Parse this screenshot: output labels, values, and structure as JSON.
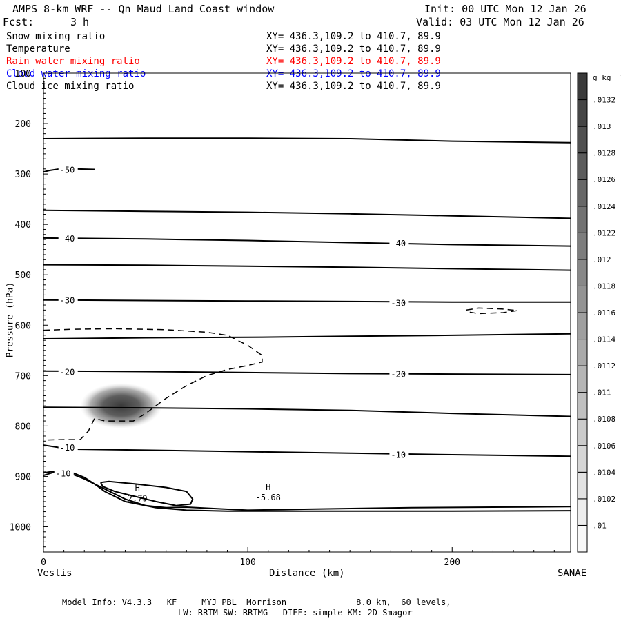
{
  "header": {
    "title": "AMPS 8-km WRF -- Qn Maud Land Coast window",
    "init": "Init: 00 UTC Mon 12 Jan 26",
    "fcst_label": "Fcst:",
    "fcst_value": "3 h",
    "valid": "Valid: 03 UTC Mon 12 Jan 26"
  },
  "variables": [
    {
      "name": "Snow mixing ratio",
      "xy": "XY= 436.3,109.2 to 410.7, 89.9",
      "color": "#000000"
    },
    {
      "name": "Temperature",
      "xy": "XY= 436.3,109.2 to 410.7, 89.9",
      "color": "#000000"
    },
    {
      "name": "Rain water mixing ratio",
      "xy": "XY= 436.3,109.2 to 410.7, 89.9",
      "color": "#ff0000"
    },
    {
      "name": "Cloud water mixing ratio",
      "xy": "XY= 436.3,109.2 to 410.7, 89.9",
      "color": "#0000ff"
    },
    {
      "name": "Cloud ice mixing ratio",
      "xy": "XY= 436.3,109.2 to 410.7, 89.9",
      "color": "#000000"
    }
  ],
  "footer": {
    "line1": "Model Info: V4.3.3   KF     MYJ PBL  Morrison              8.0 km,  60 levels,",
    "line2": "LW: RRTM SW: RRTMG   DIFF: simple KM: 2D Smagor"
  },
  "chart_data": {
    "type": "contour",
    "xlabel": "Distance (km)",
    "ylabel": "Pressure (hPa)",
    "xlim": [
      0,
      258
    ],
    "ylim": [
      1050,
      100
    ],
    "x_ticks": [
      0,
      100,
      200
    ],
    "y_ticks": [
      100,
      200,
      300,
      400,
      500,
      600,
      700,
      800,
      900,
      1000
    ],
    "x_endpoints": {
      "left": "Veslis",
      "right": "SANAE"
    },
    "colorbar": {
      "unit_label": "g kg",
      "unit_exponent": "-1",
      "levels": [
        ".01",
        ".0102",
        ".0104",
        ".0106",
        ".0108",
        ".011",
        ".0112",
        ".0114",
        ".0116",
        ".0118",
        ".012",
        ".0122",
        ".0124",
        ".0126",
        ".0128",
        ".013",
        ".0132"
      ]
    },
    "temperature_contours": [
      {
        "label": "-50",
        "label_positions": [
          [
            8,
            291
          ]
        ],
        "points": [
          [
            0,
            296
          ],
          [
            3,
            293
          ],
          [
            8,
            290
          ],
          [
            15,
            290
          ],
          [
            25,
            291
          ]
        ]
      },
      {
        "points": [
          [
            0,
            230
          ],
          [
            50,
            229
          ],
          [
            100,
            229
          ],
          [
            150,
            230
          ],
          [
            200,
            235
          ],
          [
            258,
            238
          ]
        ]
      },
      {
        "points": [
          [
            0,
            372
          ],
          [
            50,
            374
          ],
          [
            100,
            376
          ],
          [
            150,
            379
          ],
          [
            200,
            383
          ],
          [
            258,
            388
          ]
        ]
      },
      {
        "label": "-40",
        "label_positions": [
          [
            8,
            427
          ],
          [
            170,
            437
          ]
        ],
        "points": [
          [
            0,
            427
          ],
          [
            50,
            429
          ],
          [
            100,
            432
          ],
          [
            150,
            436
          ],
          [
            200,
            440
          ],
          [
            258,
            443
          ]
        ]
      },
      {
        "points": [
          [
            0,
            480
          ],
          [
            50,
            481
          ],
          [
            100,
            483
          ],
          [
            150,
            485
          ],
          [
            200,
            488
          ],
          [
            258,
            491
          ]
        ]
      },
      {
        "label": "-30",
        "label_positions": [
          [
            8,
            550
          ],
          [
            170,
            555
          ]
        ],
        "points": [
          [
            0,
            550
          ],
          [
            50,
            551
          ],
          [
            100,
            552
          ],
          [
            150,
            553
          ],
          [
            200,
            554
          ],
          [
            258,
            554
          ]
        ]
      },
      {
        "points": [
          [
            0,
            627
          ],
          [
            50,
            625
          ],
          [
            100,
            624
          ],
          [
            150,
            622
          ],
          [
            200,
            620
          ],
          [
            258,
            617
          ]
        ]
      },
      {
        "label": "-20",
        "label_positions": [
          [
            8,
            692
          ],
          [
            170,
            696
          ]
        ],
        "points": [
          [
            0,
            691
          ],
          [
            50,
            692
          ],
          [
            100,
            694
          ],
          [
            150,
            696
          ],
          [
            200,
            697
          ],
          [
            258,
            698
          ]
        ]
      },
      {
        "points": [
          [
            0,
            763
          ],
          [
            50,
            764
          ],
          [
            100,
            766
          ],
          [
            150,
            769
          ],
          [
            200,
            775
          ],
          [
            258,
            781
          ]
        ]
      },
      {
        "label": "-10",
        "label_positions": [
          [
            8,
            842
          ],
          [
            170,
            856
          ]
        ],
        "points": [
          [
            0,
            838
          ],
          [
            8,
            843
          ],
          [
            15,
            846
          ],
          [
            50,
            848
          ],
          [
            100,
            851
          ],
          [
            150,
            854
          ],
          [
            200,
            857
          ],
          [
            258,
            860
          ]
        ]
      },
      {
        "label": "-10",
        "label_positions": [
          [
            6,
            893
          ]
        ],
        "points": [
          [
            0,
            898
          ],
          [
            5,
            892
          ],
          [
            10,
            892
          ],
          [
            15,
            897
          ],
          [
            20,
            905
          ],
          [
            30,
            925
          ],
          [
            40,
            945
          ],
          [
            50,
            958
          ],
          [
            60,
            962
          ],
          [
            70,
            961
          ],
          [
            85,
            964
          ],
          [
            100,
            967
          ],
          [
            130,
            965
          ],
          [
            180,
            962
          ],
          [
            220,
            961
          ],
          [
            258,
            960
          ]
        ]
      },
      {
        "points": [
          [
            0,
            893
          ],
          [
            5,
            890
          ],
          [
            10,
            890
          ],
          [
            15,
            894
          ],
          [
            20,
            902
          ],
          [
            25,
            915
          ],
          [
            30,
            930
          ],
          [
            40,
            950
          ],
          [
            55,
            962
          ],
          [
            70,
            967
          ],
          [
            90,
            969
          ],
          [
            110,
            969
          ],
          [
            150,
            969
          ],
          [
            200,
            969
          ],
          [
            258,
            968
          ]
        ]
      }
    ],
    "closed_contour": {
      "points": [
        [
          28,
          912
        ],
        [
          32,
          910
        ],
        [
          45,
          915
        ],
        [
          60,
          922
        ],
        [
          70,
          930
        ],
        [
          73,
          945
        ],
        [
          72,
          955
        ],
        [
          65,
          958
        ],
        [
          55,
          950
        ],
        [
          45,
          940
        ],
        [
          35,
          930
        ],
        [
          29,
          920
        ],
        [
          28,
          912
        ]
      ]
    },
    "highs": [
      {
        "label": "H",
        "value": "2.79",
        "x": 46,
        "p": 940
      },
      {
        "label": "H",
        "value": "-5.68",
        "x": 110,
        "p": 938
      }
    ],
    "dashed_contours": [
      {
        "points": [
          [
            0,
            610
          ],
          [
            15,
            608
          ],
          [
            35,
            607
          ],
          [
            60,
            609
          ],
          [
            80,
            614
          ],
          [
            90,
            620
          ],
          [
            100,
            640
          ],
          [
            107,
            660
          ],
          [
            107,
            673
          ],
          [
            100,
            680
          ],
          [
            90,
            688
          ],
          [
            80,
            700
          ],
          [
            70,
            720
          ],
          [
            60,
            745
          ],
          [
            50,
            775
          ],
          [
            44,
            790
          ],
          [
            30,
            790
          ],
          [
            25,
            785
          ],
          [
            22,
            810
          ],
          [
            18,
            827
          ],
          [
            10,
            827
          ],
          [
            0,
            828
          ]
        ]
      },
      {
        "points": [
          [
            207,
            570
          ],
          [
            213,
            566
          ],
          [
            225,
            568
          ],
          [
            232,
            571
          ],
          [
            225,
            575
          ],
          [
            213,
            577
          ],
          [
            207,
            573
          ],
          [
            207,
            570
          ]
        ]
      }
    ],
    "shaded_blob": {
      "x": 38,
      "p": 760,
      "rx_km": 20,
      "rp_hpa": 45,
      "value": ".0132"
    }
  }
}
